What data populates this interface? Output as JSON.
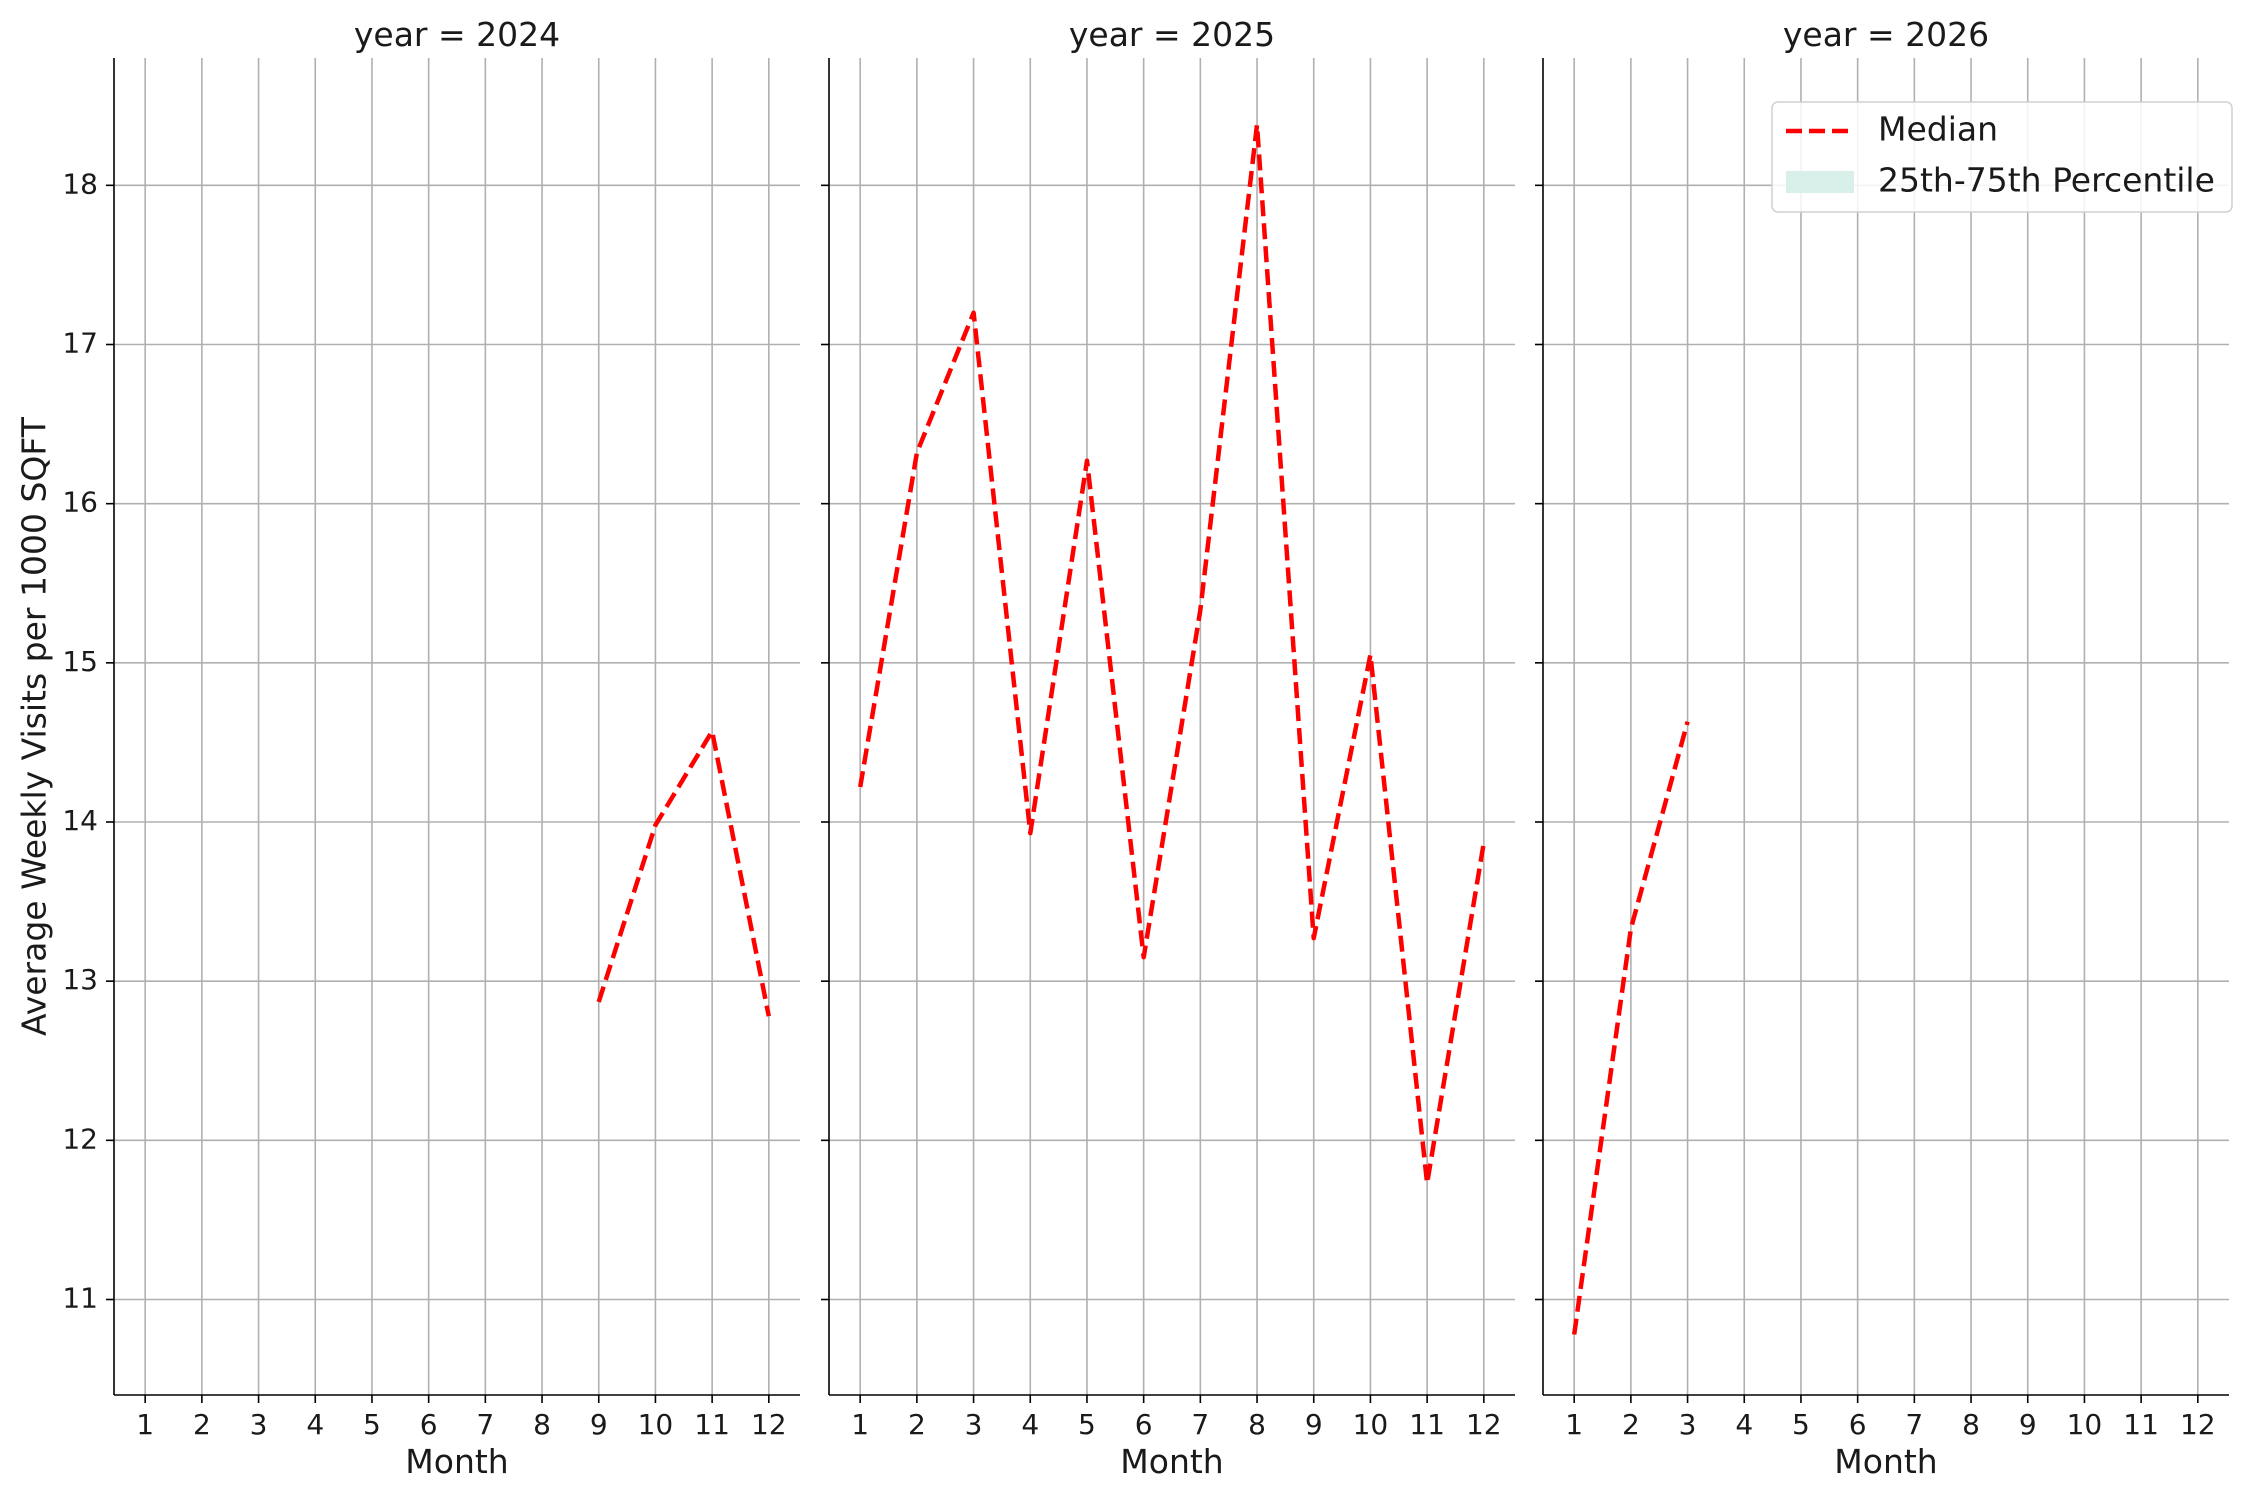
{
  "chart_data": {
    "type": "line",
    "ylabel": "Average Weekly Visits per 1000 SQFT",
    "ylim": [
      10.4,
      18.8
    ],
    "yticks": [
      11,
      12,
      13,
      14,
      15,
      16,
      17,
      18
    ],
    "xticks": [
      1,
      2,
      3,
      4,
      5,
      6,
      7,
      8,
      9,
      10,
      11,
      12
    ],
    "xlim": [
      0.45,
      12.55
    ],
    "grid": true,
    "legend": {
      "placement": "top-right",
      "entries": [
        {
          "label": "Median",
          "kind": "dashed-line",
          "color": "#ff0000"
        },
        {
          "label": "25th-75th Percentile",
          "kind": "patch",
          "color": "#d9efea"
        }
      ]
    },
    "panels": [
      {
        "title": "year = 2024",
        "xlabel": "Month",
        "series": [
          {
            "name": "Median",
            "color": "#ff0000",
            "points": [
              {
                "x": 9,
                "y": 12.87
              },
              {
                "x": 10,
                "y": 13.98
              },
              {
                "x": 11,
                "y": 14.57
              },
              {
                "x": 12,
                "y": 12.78
              }
            ]
          }
        ]
      },
      {
        "title": "year = 2025",
        "xlabel": "Month",
        "series": [
          {
            "name": "Median",
            "color": "#ff0000",
            "points": [
              {
                "x": 1,
                "y": 14.22
              },
              {
                "x": 2,
                "y": 16.32
              },
              {
                "x": 3,
                "y": 17.2
              },
              {
                "x": 4,
                "y": 13.93
              },
              {
                "x": 5,
                "y": 16.27
              },
              {
                "x": 6,
                "y": 13.15
              },
              {
                "x": 7,
                "y": 15.33
              },
              {
                "x": 8,
                "y": 18.38
              },
              {
                "x": 9,
                "y": 13.27
              },
              {
                "x": 10,
                "y": 15.05
              },
              {
                "x": 11,
                "y": 11.73
              },
              {
                "x": 12,
                "y": 13.87
              }
            ]
          }
        ]
      },
      {
        "title": "year = 2026",
        "xlabel": "Month",
        "series": [
          {
            "name": "Median",
            "color": "#ff0000",
            "points": [
              {
                "x": 1,
                "y": 10.78
              },
              {
                "x": 2,
                "y": 13.33
              },
              {
                "x": 3,
                "y": 14.63
              }
            ]
          }
        ]
      }
    ]
  }
}
